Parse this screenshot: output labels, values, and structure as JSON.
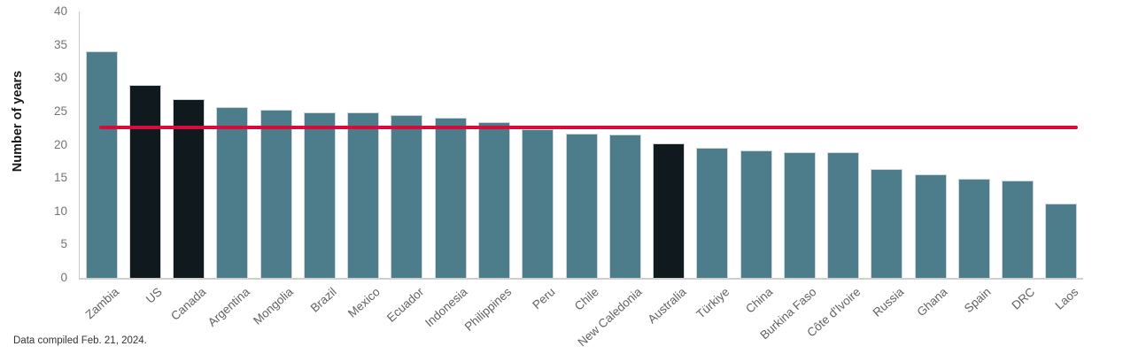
{
  "chart_data": {
    "type": "bar",
    "title": "",
    "xlabel": "",
    "ylabel": "Number of years",
    "ylim": [
      0,
      40
    ],
    "yticks": [
      0,
      5,
      10,
      15,
      20,
      25,
      30,
      35,
      40
    ],
    "grid": false,
    "legend": "none",
    "categories": [
      "Zambia",
      "US",
      "Canada",
      "Argentina",
      "Mongolia",
      "Brazil",
      "Mexico",
      "Ecuador",
      "Indonesia",
      "Philippines",
      "Peru",
      "Chile",
      "New Caledonia",
      "Australia",
      "Türkiye",
      "China",
      "Burkina Faso",
      "Côte d'Ivoire",
      "Russia",
      "Ghana",
      "Spain",
      "DRC",
      "Laos"
    ],
    "values": [
      34.0,
      29.0,
      26.8,
      25.6,
      25.3,
      24.9,
      24.8,
      24.4,
      24.0,
      23.4,
      22.3,
      21.6,
      21.5,
      20.2,
      19.5,
      19.1,
      18.9,
      18.9,
      16.3,
      15.5,
      14.9,
      14.6,
      11.1
    ],
    "highlighted_categories": [
      "US",
      "Canada",
      "Australia"
    ],
    "bar_color": "#4d7c8a",
    "highlight_color": "#101a1e",
    "average_line": {
      "value": 22.6,
      "color": "#d50c3c"
    }
  },
  "footer": {
    "note": "Data compiled Feb. 21, 2024."
  }
}
